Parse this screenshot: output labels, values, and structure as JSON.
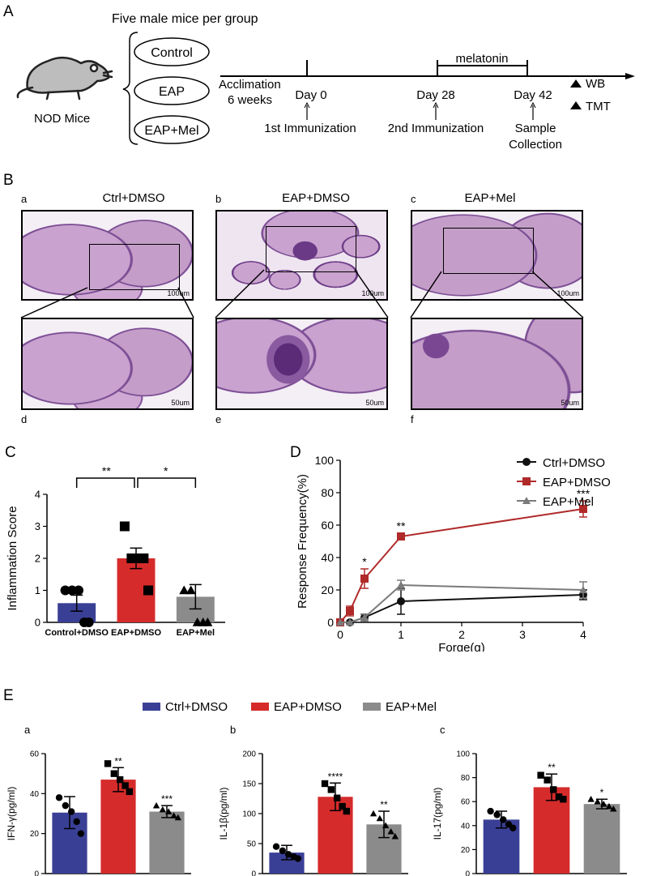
{
  "panelA": {
    "letter": "A",
    "header": "Five male mice per group",
    "mouse_label": "NOD  Mice",
    "groups": [
      "Control",
      "EAP",
      "EAP+Mel"
    ],
    "timeline": {
      "acclimation": "Acclimation",
      "acclimation_weeks": "6 weeks",
      "day0": "Day 0",
      "day0_event": "1st Immunization",
      "day28": "Day 28",
      "day28_event": "2nd Immunization",
      "day42": "Day 42",
      "day42_event_1": "Sample",
      "day42_event_2": "Collection",
      "melatonin": "melatonin",
      "wb": "WB",
      "tmt": "TMT"
    }
  },
  "panelB": {
    "letter": "B",
    "titles": [
      "Ctrl+DMSO",
      "EAP+DMSO",
      "EAP+Mel"
    ],
    "top_letters": [
      "a",
      "b",
      "c"
    ],
    "bottom_letters": [
      "d",
      "e",
      "f"
    ],
    "scale_top": "100um",
    "scale_bottom": "50um"
  },
  "panelC": {
    "letter": "C",
    "sig_left": "**",
    "sig_right": "*"
  },
  "panelD": {
    "letter": "D",
    "sig": [
      "*",
      "**",
      "***"
    ]
  },
  "panelE": {
    "letter": "E",
    "legend": [
      "Ctrl+DMSO",
      "EAP+DMSO",
      "EAP+Mel"
    ],
    "sub_letters": [
      "a",
      "b",
      "c"
    ]
  },
  "chart_data": [
    {
      "id": "C",
      "type": "bar",
      "categories": [
        "Control+DMSO",
        "EAP+DMSO",
        "EAP+Mel"
      ],
      "values": [
        0.6,
        2.0,
        0.8
      ],
      "errors": [
        0.25,
        0.32,
        0.38
      ],
      "points": [
        [
          1,
          1,
          1,
          0,
          0
        ],
        [
          3,
          2,
          2,
          2,
          1
        ],
        [
          1,
          1,
          0,
          0,
          0
        ]
      ],
      "ylabel": "Inflammation Score",
      "ylim": [
        0,
        4
      ],
      "yticks": [
        0,
        1,
        2,
        3,
        4
      ],
      "colors": [
        "#3a3f96",
        "#d62b2b",
        "#8b8b8b"
      ]
    },
    {
      "id": "D",
      "type": "line",
      "x": [
        0,
        0.16,
        0.4,
        1,
        4
      ],
      "xticks": [
        0,
        1,
        2,
        3,
        4
      ],
      "series": [
        {
          "name": "Ctrl+DMSO",
          "values": [
            0,
            0,
            3,
            13,
            17
          ],
          "errors": [
            0,
            0,
            2,
            8,
            3
          ],
          "color": "#111111",
          "marker": "circle"
        },
        {
          "name": "EAP+DMSO",
          "values": [
            0,
            7,
            27,
            53,
            70
          ],
          "errors": [
            0,
            3,
            6,
            2,
            5
          ],
          "color": "#b02a2a",
          "marker": "square"
        },
        {
          "name": "EAP+Mel",
          "values": [
            0,
            0,
            3,
            23,
            20
          ],
          "errors": [
            0,
            0,
            2,
            3,
            5
          ],
          "color": "#7a7a7a",
          "marker": "triangle"
        }
      ],
      "xlabel": "Forge(g)",
      "ylabel": "Response Frequency(%)",
      "ylim": [
        0,
        100
      ],
      "yticks": [
        0,
        20,
        40,
        60,
        80,
        100
      ],
      "legend_position": "top-right"
    },
    {
      "id": "E-a",
      "type": "bar",
      "categories": [
        "Ctrl+DMSO",
        "EAP+DMSO",
        "EAP+Mel"
      ],
      "values": [
        30.5,
        47,
        31
      ],
      "errors": [
        8,
        6,
        3
      ],
      "points": [
        [
          38,
          34,
          31,
          26,
          20
        ],
        [
          55,
          50,
          47,
          44,
          41
        ],
        [
          34,
          32,
          31,
          29,
          28
        ]
      ],
      "sig": [
        "",
        "**",
        "***"
      ],
      "ylabel": "IFN-γ(pg/ml)",
      "ylim": [
        0,
        60
      ],
      "yticks": [
        0,
        20,
        40,
        60
      ],
      "colors": [
        "#3a3f96",
        "#d62b2b",
        "#8b8b8b"
      ]
    },
    {
      "id": "E-b",
      "type": "bar",
      "categories": [
        "Ctrl+DMSO",
        "EAP+DMSO",
        "EAP+Mel"
      ],
      "values": [
        35,
        128,
        82
      ],
      "errors": [
        12,
        23,
        22
      ],
      "points": [
        [
          45,
          38,
          32,
          28,
          25
        ],
        [
          150,
          140,
          126,
          112,
          104
        ],
        [
          100,
          92,
          80,
          70,
          62
        ]
      ],
      "sig": [
        "",
        "****",
        "**"
      ],
      "ylabel": "IL-1β(pg/ml)",
      "ylim": [
        0,
        200
      ],
      "yticks": [
        0,
        50,
        100,
        150,
        200
      ],
      "colors": [
        "#3a3f96",
        "#d62b2b",
        "#8b8b8b"
      ]
    },
    {
      "id": "E-c",
      "type": "bar",
      "categories": [
        "Ctrl+DMSO",
        "EAP+DMSO",
        "EAP+Mel"
      ],
      "values": [
        45,
        72,
        58
      ],
      "errors": [
        7,
        11,
        4
      ],
      "points": [
        [
          52,
          49,
          45,
          41,
          38
        ],
        [
          82,
          78,
          70,
          64,
          62
        ],
        [
          62,
          60,
          58,
          56,
          54
        ]
      ],
      "sig": [
        "",
        "**",
        "*"
      ],
      "ylabel": "IL-17(pg/ml)",
      "ylim": [
        0,
        100
      ],
      "yticks": [
        0,
        20,
        40,
        60,
        80,
        100
      ],
      "colors": [
        "#3a3f96",
        "#d62b2b",
        "#8b8b8b"
      ]
    }
  ]
}
